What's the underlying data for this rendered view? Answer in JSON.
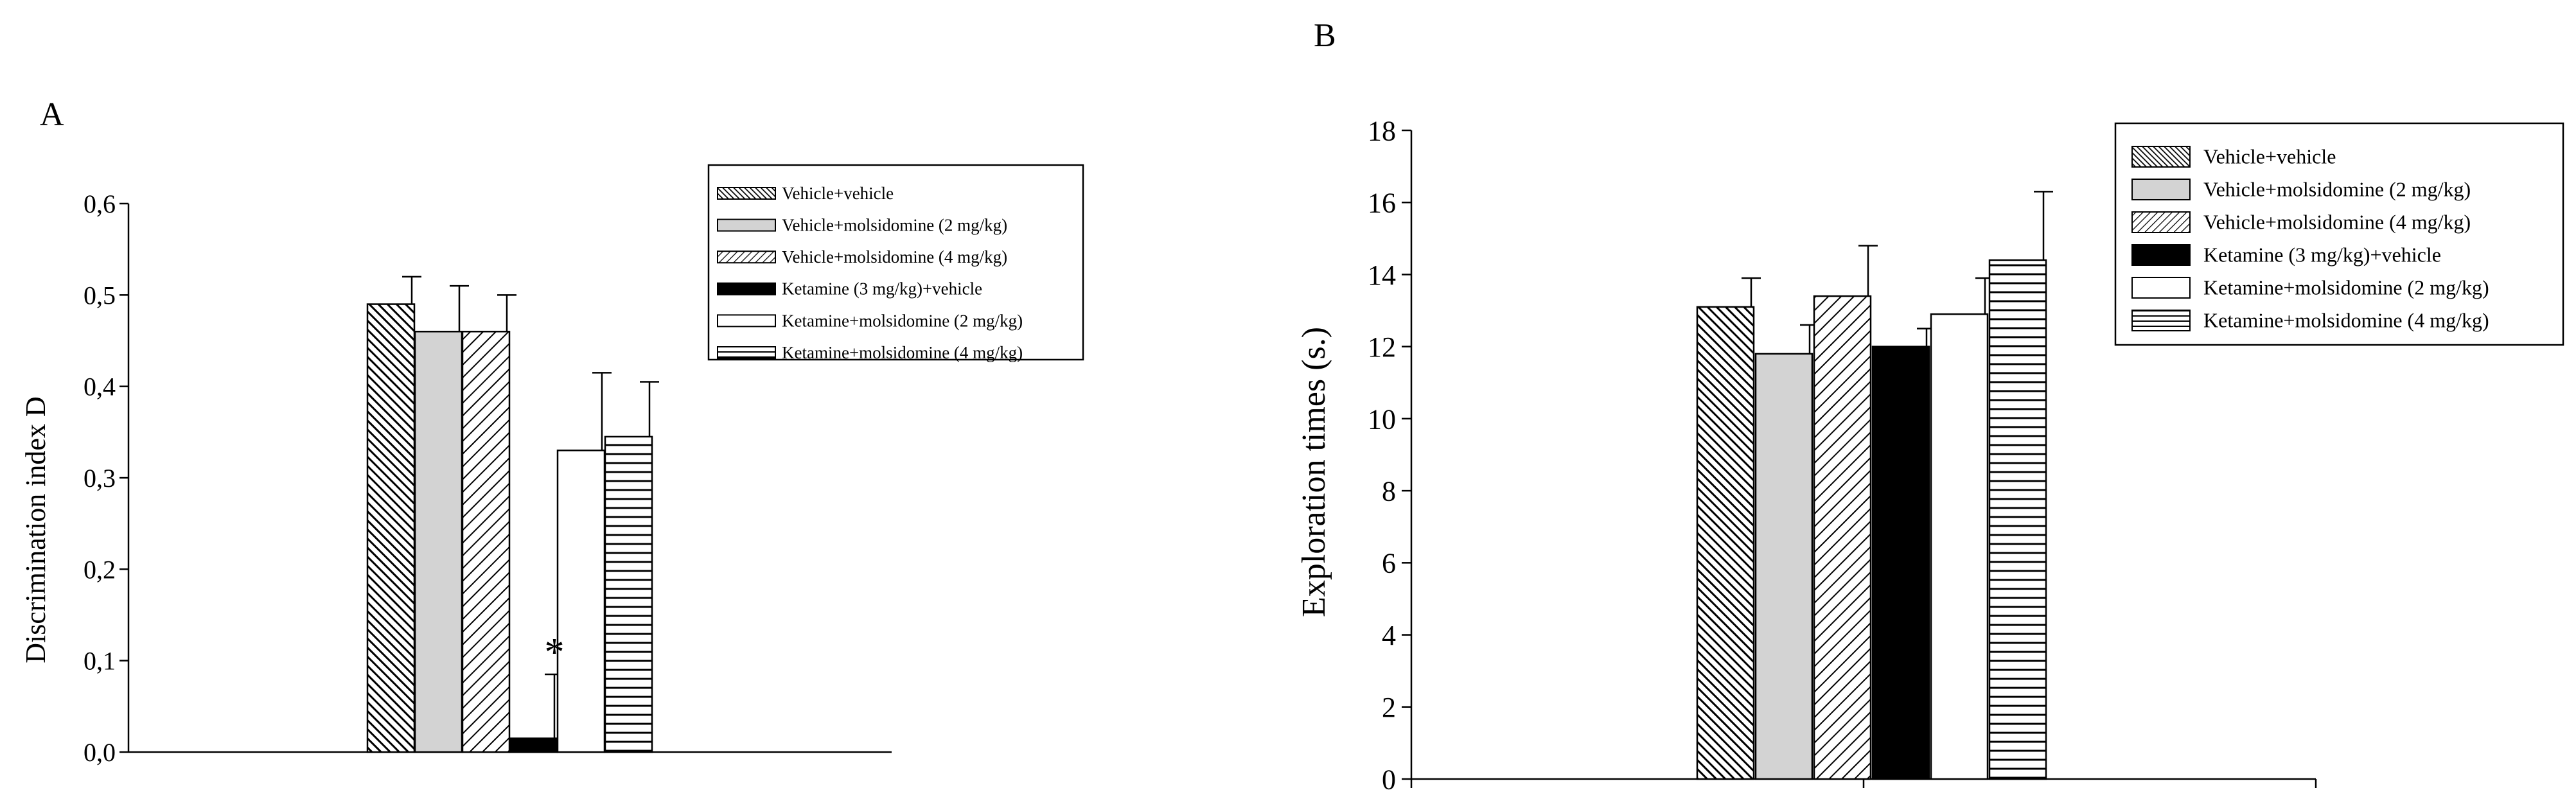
{
  "chart_data": [
    {
      "panel_label": "A",
      "type": "bar",
      "title": "",
      "xlabel": "",
      "ylabel": "Discrimination index D",
      "ylim": [
        0,
        0.6
      ],
      "yticks": [
        "0,0",
        "0,1",
        "0,2",
        "0,3",
        "0,4",
        "0,5",
        "0,6"
      ],
      "grid": false,
      "legend_position": "top-right",
      "series": [
        {
          "name": "Vehicle+vehicle",
          "value": 0.49,
          "error": 0.03,
          "pattern": "diag-back-dense"
        },
        {
          "name": "Vehicle+molsidomine (2 mg/kg)",
          "value": 0.46,
          "error": 0.05,
          "pattern": "light-gray"
        },
        {
          "name": "Vehicle+molsidomine (4 mg/kg)",
          "value": 0.46,
          "error": 0.04,
          "pattern": "diag-forward"
        },
        {
          "name": "Ketamine (3 mg/kg)+vehicle",
          "value": 0.015,
          "error": 0.07,
          "pattern": "black"
        },
        {
          "name": "Ketamine+molsidomine (2 mg/kg)",
          "value": 0.33,
          "error": 0.085,
          "pattern": "white"
        },
        {
          "name": "Ketamine+molsidomine (4 mg/kg)",
          "value": 0.345,
          "error": 0.06,
          "pattern": "horizontal"
        }
      ],
      "annotations": [
        {
          "series_index": 3,
          "text": "*"
        }
      ]
    },
    {
      "panel_label": "B",
      "type": "bar",
      "title": "",
      "xlabel": "",
      "ylabel": "Exploration times (s.)",
      "ylim": [
        0,
        18
      ],
      "yticks": [
        "0",
        "2",
        "4",
        "6",
        "8",
        "10",
        "12",
        "14",
        "16",
        "18"
      ],
      "grid": false,
      "legend_position": "top-right",
      "series": [
        {
          "name": "Vehicle+vehicle",
          "value": 13.1,
          "error": 0.8,
          "pattern": "diag-back-dense"
        },
        {
          "name": "Vehicle+molsidomine (2 mg/kg)",
          "value": 11.8,
          "error": 0.8,
          "pattern": "light-gray"
        },
        {
          "name": "Vehicle+molsidomine (4 mg/kg)",
          "value": 13.4,
          "error": 1.4,
          "pattern": "diag-forward"
        },
        {
          "name": "Ketamine (3 mg/kg)+vehicle",
          "value": 12.0,
          "error": 0.5,
          "pattern": "black"
        },
        {
          "name": "Ketamine+molsidomine (2 mg/kg)",
          "value": 12.9,
          "error": 1.0,
          "pattern": "white"
        },
        {
          "name": "Ketamine+molsidomine (4 mg/kg)",
          "value": 14.4,
          "error": 1.9,
          "pattern": "horizontal"
        }
      ],
      "annotations": []
    }
  ]
}
